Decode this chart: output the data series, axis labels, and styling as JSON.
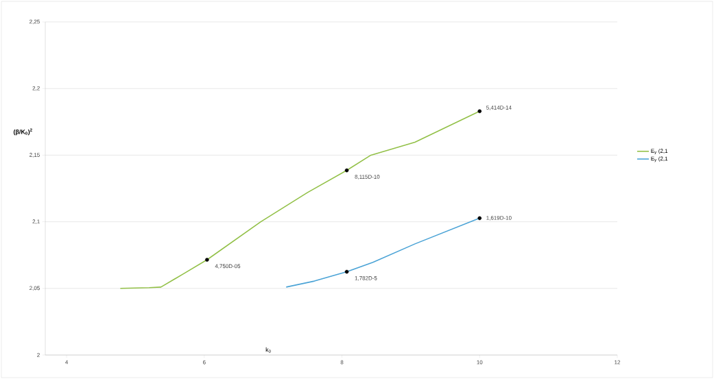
{
  "chart_data": {
    "type": "line",
    "xlabel": "k$_{0}$",
    "ylabel": "(β/K$_{0}$)$^{2}$",
    "xlim": [
      3.69,
      12
    ],
    "ylim": [
      2,
      2.25
    ],
    "xticks": [
      4,
      6,
      8,
      10,
      12
    ],
    "yticks": [
      {
        "value": 2,
        "label": "2"
      },
      {
        "value": 2.05,
        "label": "2,05"
      },
      {
        "value": 2.1,
        "label": "2,1"
      },
      {
        "value": 2.15,
        "label": "2,15"
      },
      {
        "value": 2.2,
        "label": "2,2"
      },
      {
        "value": 2.25,
        "label": "2,25"
      }
    ],
    "grid": "y",
    "legend": "right",
    "marker": "none",
    "line_style": "solid",
    "series": [
      {
        "name": "E$_{y}$ (2,1",
        "color": "#92c047",
        "x": [
          4.78,
          5.2,
          5.37,
          5.7,
          6.04,
          6.82,
          7.5,
          8.07,
          8.42,
          9.06,
          10.0
        ],
        "values": [
          2.05,
          2.0505,
          2.051,
          2.061,
          2.0715,
          2.1,
          2.122,
          2.1386,
          2.15,
          2.1597,
          2.183
        ]
      },
      {
        "name": "E$_{y}$ (2,1",
        "color": "#4aa3d6",
        "x": [
          7.19,
          7.6,
          8.07,
          8.45,
          9.06,
          10.0
        ],
        "values": [
          2.051,
          2.0555,
          2.0625,
          2.0696,
          2.0834,
          2.1027
        ]
      },
      {
        "type": "scatter",
        "color": "#000000",
        "x": [
          6.04,
          8.07,
          10.0,
          8.07,
          10.0
        ],
        "values": [
          2.0715,
          2.1386,
          2.183,
          2.0625,
          2.1027
        ]
      }
    ],
    "annotations": [
      {
        "text": "4,750D-05",
        "x": 6.04,
        "y": 2.0715
      },
      {
        "text": "8,115D-10",
        "x": 8.07,
        "y": 2.1386
      },
      {
        "text": "5,414D-14",
        "x": 10.0,
        "y": 2.183
      },
      {
        "text": "1,782D-5",
        "x": 8.07,
        "y": 2.0625
      },
      {
        "text": "1,619D-10",
        "x": 10.0,
        "y": 2.1027
      }
    ]
  }
}
